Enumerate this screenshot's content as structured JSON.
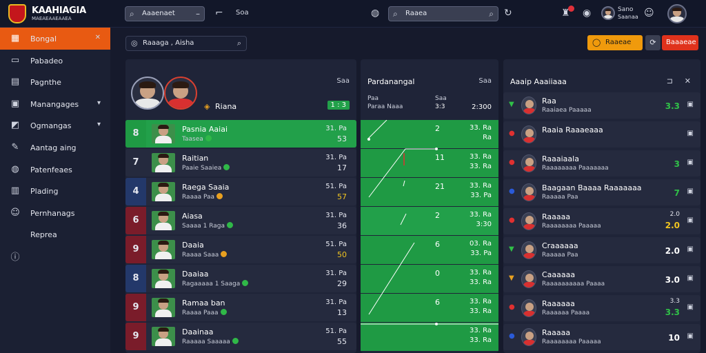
{
  "app": {
    "logo_line1": "KAAHIAGIA",
    "logo_line2": "MAEAEAAEAAEA"
  },
  "topbar": {
    "search1": "Aaaenaet",
    "link1": "Soa",
    "search2": "Raaea",
    "user_name": "Sano",
    "user_sub": "Saanaa",
    "notifications_count": "1"
  },
  "sidebar": {
    "items": [
      {
        "label": "Bongal",
        "icon": "grid-icon",
        "glyph": "▦",
        "active": true,
        "chevron": "✕"
      },
      {
        "label": "Pabadeo",
        "icon": "inbox-icon",
        "glyph": "▭",
        "active": false,
        "chevron": ""
      },
      {
        "label": "Pagnthe",
        "icon": "document-icon",
        "glyph": "▤",
        "active": false,
        "chevron": ""
      },
      {
        "label": "Manangages",
        "icon": "gamepad-icon",
        "glyph": "▣",
        "active": false,
        "chevron": "▾"
      },
      {
        "label": "Ogmangas",
        "icon": "flag-icon",
        "glyph": "◩",
        "active": false,
        "chevron": "▾"
      },
      {
        "label": "Aantag aing",
        "icon": "wrench-icon",
        "glyph": "✎",
        "active": false,
        "chevron": ""
      },
      {
        "label": "Patenfeaes",
        "icon": "globe-icon",
        "glyph": "◍",
        "active": false,
        "chevron": ""
      },
      {
        "label": "Plading",
        "icon": "chart-icon",
        "glyph": "▥",
        "active": false,
        "chevron": ""
      },
      {
        "label": "Pernhanags",
        "icon": "people-icon",
        "glyph": "☺",
        "active": false,
        "chevron": ""
      },
      {
        "label": "Reprea",
        "icon": "none",
        "glyph": "",
        "active": false,
        "chevron": ""
      },
      {
        "label": "",
        "icon": "info-icon",
        "glyph": "ⓘ",
        "active": false,
        "chevron": ""
      }
    ]
  },
  "filter": {
    "text": "Raaaga , Aisha"
  },
  "actions": {
    "orange_label": "Raaeae",
    "red_label": "Baaaeae"
  },
  "left_panel": {
    "head_right": "Saa",
    "team_label": "Riana",
    "team_score": "1 : 3",
    "rows": [
      {
        "rank": "8",
        "name": "Pasnia Aaiai",
        "sub": "Taasea",
        "v1": "31. Pa",
        "v2": "53",
        "hl": true,
        "rank_bg": "#1f9a44",
        "yellow": false
      },
      {
        "rank": "7",
        "name": "Raitian",
        "sub": "Paaie Saaiea",
        "v1": "31. Pa",
        "v2": "17",
        "hl": false,
        "rank_bg": "#252a3e",
        "yellow": false
      },
      {
        "rank": "4",
        "name": "Raega Saaia",
        "sub": "Raaaa Paa",
        "v1": "51. Pa",
        "v2": "57",
        "hl": false,
        "rank_bg": "#23386a",
        "yellow": true
      },
      {
        "rank": "6",
        "name": "Aiasa",
        "sub": "Saaaa 1 Raga",
        "v1": "31. Pa",
        "v2": "36",
        "hl": false,
        "rank_bg": "#7a1c2a",
        "yellow": false
      },
      {
        "rank": "9",
        "name": "Daaia",
        "sub": "Raaaa Saaa",
        "v1": "51. Pa",
        "v2": "50",
        "hl": false,
        "rank_bg": "#7a1c2a",
        "yellow": true
      },
      {
        "rank": "8",
        "name": "Daaiaa",
        "sub": "Ragaaaaa 1 Saaga",
        "v1": "31. Pa",
        "v2": "29",
        "hl": false,
        "rank_bg": "#23386a",
        "yellow": false
      },
      {
        "rank": "9",
        "name": "Ramaa ban",
        "sub": "Raaaa Paaa",
        "v1": "31. Pa",
        "v2": "13",
        "hl": false,
        "rank_bg": "#7a1c2a",
        "yellow": false
      },
      {
        "rank": "9",
        "name": "Daainaa",
        "sub": "Raaaaa Saaaaa",
        "v1": "51. Pa",
        "v2": "55",
        "hl": false,
        "rank_bg": "#7a1c2a",
        "yellow": false
      }
    ]
  },
  "middle_panel": {
    "title": "Pardanangal",
    "head_right": "Saa",
    "sub1": "Paa",
    "sub1_val": "Saa",
    "sub2": "Paraa Naaa",
    "sub2_val": "3:3",
    "sub3_val": "2:300",
    "rows": [
      {
        "num": "2",
        "a": "33. Ra",
        "b": "Ra",
        "hl": false
      },
      {
        "num": "11",
        "a": "33. Ra",
        "b": "33. Ra",
        "hl": false
      },
      {
        "num": "21",
        "a": "33. Ra",
        "b": "33. Pa",
        "hl": false
      },
      {
        "num": "2",
        "a": "33. Ra",
        "b": "3:30",
        "hl": true
      },
      {
        "num": "6",
        "a": "03. Ra",
        "b": "33. Pa",
        "hl": false
      },
      {
        "num": "0",
        "a": "33. Ra",
        "b": "33. Ra",
        "hl": false
      },
      {
        "num": "6",
        "a": "33. Ra",
        "b": "33. Ra",
        "hl": false
      },
      {
        "num": "",
        "a": "33. Ra",
        "b": "33. Ra",
        "hl": false
      }
    ]
  },
  "right_panel": {
    "title": "Aaaip Aaaiiaaa",
    "rows": [
      {
        "name": "Raa",
        "sub": "Raaiaea Paaaaa",
        "score": "3.3",
        "top": "",
        "color": "g",
        "icon": "▼",
        "icon_color": "#30c048"
      },
      {
        "name": "Raaia Raaaeaaa",
        "sub": "",
        "score": "",
        "top": "",
        "color": "g",
        "icon": "●",
        "icon_color": "#e03030"
      },
      {
        "name": "Raaaiaala",
        "sub": "Raaaaaaaa Paaaaaaa",
        "score": "3",
        "top": "",
        "color": "g",
        "icon": "●",
        "icon_color": "#e03030"
      },
      {
        "name": "Baagaan Baaaa Raaaaaaa",
        "sub": "Raaaaa Paa",
        "score": "7",
        "top": "",
        "color": "g",
        "icon": "●",
        "icon_color": "#2a5ad8"
      },
      {
        "name": "Raaaaa",
        "sub": "Raaaaaaaa Paaaaa",
        "score": "2.0",
        "top": "2.0",
        "color": "y",
        "icon": "●",
        "icon_color": "#e03030"
      },
      {
        "name": "Craaaaaa",
        "sub": "Raaaaa Paa",
        "score": "2.0",
        "top": "",
        "color": "w",
        "icon": "▼",
        "icon_color": "#30c048"
      },
      {
        "name": "Caaaaaa",
        "sub": "Raaaaaaaaaa Paaaa",
        "score": "3.0",
        "top": "",
        "color": "w",
        "icon": "▼",
        "icon_color": "#e8a020"
      },
      {
        "name": "Raaaaaa",
        "sub": "Raaaaaa Paaaa",
        "score": "3.3",
        "top": "3.3",
        "color": "g",
        "icon": "●",
        "icon_color": "#e03030"
      },
      {
        "name": "Raaaaa",
        "sub": "Raaaaaaaa Paaaaa",
        "score": "10",
        "top": "",
        "color": "w",
        "icon": "●",
        "icon_color": "#2a5ad8"
      }
    ]
  }
}
